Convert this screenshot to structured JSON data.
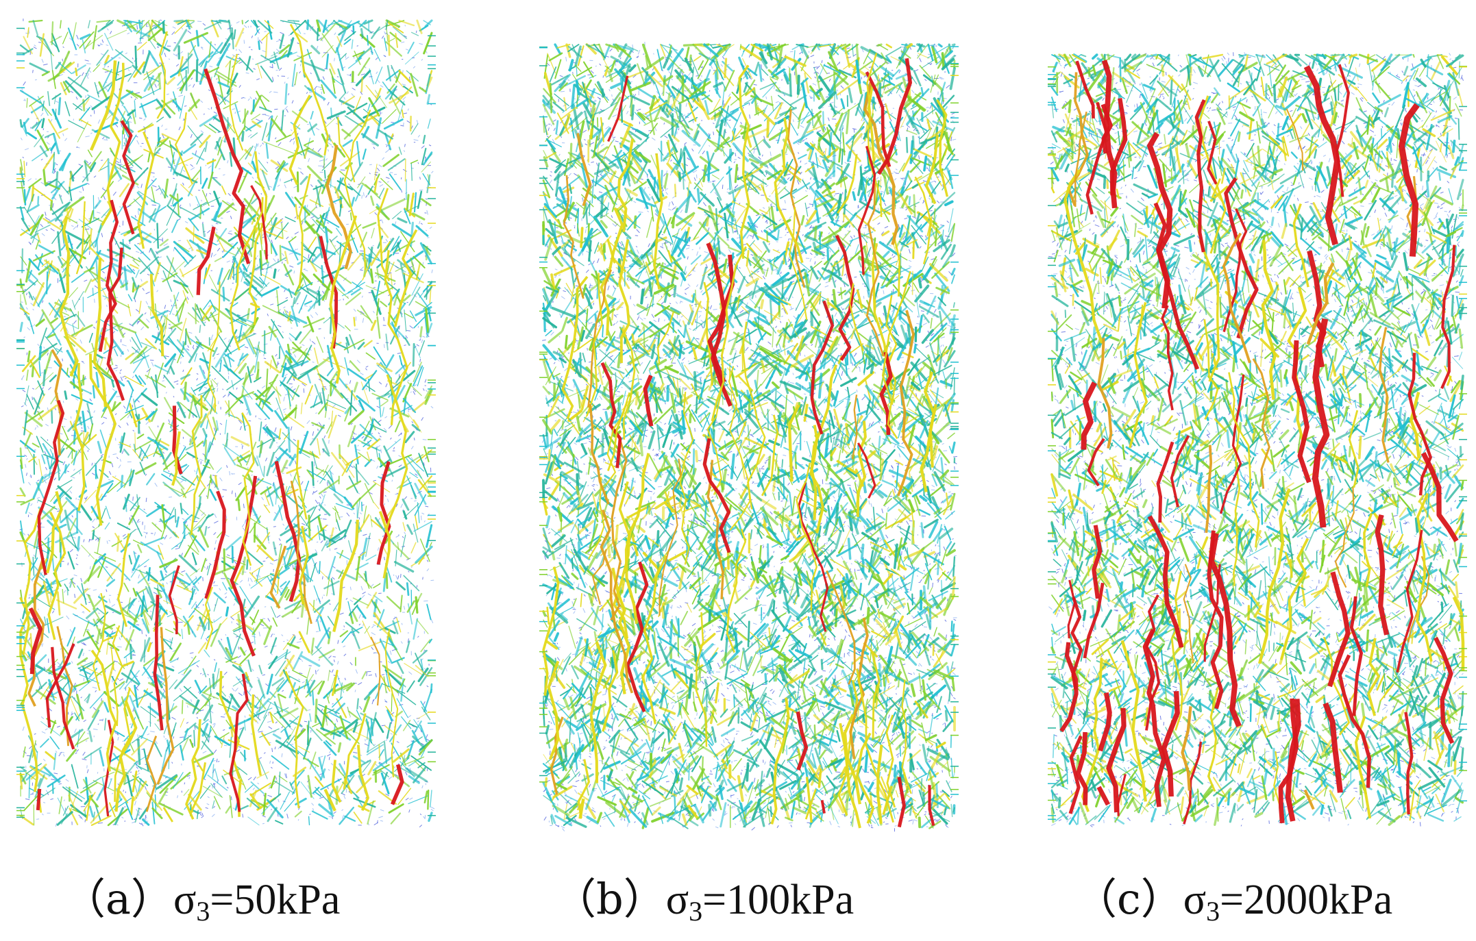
{
  "panels": [
    {
      "id": "a",
      "caption_prefix": "（a）",
      "sigma": "σ",
      "subscript": "3",
      "caption_value": "=50kPa",
      "density": 0.45,
      "red_share": 0.05
    },
    {
      "id": "b",
      "caption_prefix": "（b）",
      "sigma": "σ",
      "subscript": "3",
      "caption_value": "=100kPa",
      "density": 0.85,
      "red_share": 0.03
    },
    {
      "id": "c",
      "caption_prefix": "（c）",
      "sigma": "σ",
      "subscript": "3",
      "caption_value": "=2000kPa",
      "density": 0.7,
      "red_share": 0.08
    }
  ],
  "colors": {
    "blue": "#3a4fd8",
    "cyan": "#1fbfd0",
    "teal": "#22b39a",
    "green": "#7fd12a",
    "yellow": "#e4d91a",
    "orange": "#e0a020",
    "red": "#d8161c"
  }
}
